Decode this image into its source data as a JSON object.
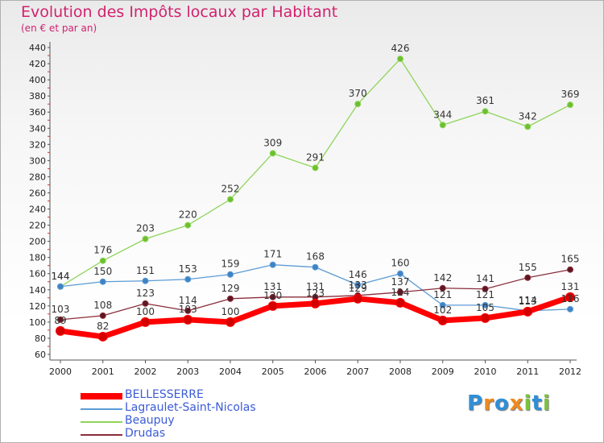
{
  "title": "Evolution des Impôts locaux par Habitant",
  "subtitle": "(en € et par an)",
  "logo": {
    "text": "Proxiti",
    "letters": [
      {
        "ch": "P",
        "color": "#2f8fd8"
      },
      {
        "ch": "r",
        "color": "#f08a1c"
      },
      {
        "ch": "o",
        "color": "#2f8fd8"
      },
      {
        "ch": "x",
        "color": "#f08a1c"
      },
      {
        "ch": "i",
        "color": "#7cc241"
      },
      {
        "ch": "t",
        "color": "#2f8fd8"
      },
      {
        "ch": "i",
        "color": "#7cc241"
      }
    ]
  },
  "chart_data": {
    "type": "line",
    "x": [
      "2000",
      "2001",
      "2002",
      "2003",
      "2004",
      "2005",
      "2006",
      "2007",
      "2008",
      "2009",
      "2010",
      "2011",
      "2012"
    ],
    "ylim": [
      60,
      440
    ],
    "yticks": [
      60,
      80,
      100,
      120,
      140,
      160,
      180,
      200,
      220,
      240,
      260,
      280,
      300,
      320,
      340,
      360,
      380,
      400,
      420,
      440
    ],
    "grid": false,
    "legend_position": "bottom-left",
    "series": [
      {
        "name": "Beaupuy",
        "color": "#8fd45a",
        "marker": "#6cbf2e",
        "width": 1.3,
        "values": [
          144,
          176,
          203,
          220,
          252,
          309,
          291,
          370,
          426,
          344,
          361,
          342,
          369
        ]
      },
      {
        "name": "Lagraulet-Saint-Nicolas",
        "color": "#5b9bd5",
        "marker": "#3f83c4",
        "width": 1.3,
        "values": [
          144,
          150,
          151,
          153,
          159,
          171,
          168,
          146,
          160,
          121,
          121,
          114,
          116
        ]
      },
      {
        "name": "Drudas",
        "color": "#8a2e3c",
        "marker": "#5e1620",
        "width": 1.3,
        "values": [
          103,
          108,
          123,
          114,
          129,
          131,
          131,
          133,
          137,
          142,
          141,
          155,
          165
        ]
      },
      {
        "name": "BELLESSERRE",
        "color": "#ff0000",
        "marker": "#d40000",
        "width": 7,
        "values": [
          89,
          82,
          100,
          103,
          100,
          120,
          123,
          129,
          124,
          102,
          105,
          113,
          131
        ]
      }
    ],
    "labels": [
      {
        "series": "Beaupuy",
        "values": [
          144,
          176,
          203,
          220,
          252,
          309,
          291,
          370,
          426,
          344,
          361,
          342,
          369
        ]
      },
      {
        "series": "Lagraulet-Saint-Nicolas",
        "values": [
          144,
          150,
          151,
          153,
          159,
          171,
          168,
          146,
          160,
          121,
          121,
          114,
          116
        ]
      },
      {
        "series": "Drudas",
        "values": [
          103,
          108,
          123,
          114,
          129,
          131,
          131,
          133,
          137,
          142,
          141,
          155,
          165
        ]
      },
      {
        "series": "BELLESSERRE",
        "values": [
          89,
          82,
          100,
          103,
          100,
          120,
          123,
          129,
          124,
          102,
          105,
          113,
          131
        ]
      }
    ],
    "legend_order": [
      "BELLESSERRE",
      "Lagraulet-Saint-Nicolas",
      "Beaupuy",
      "Drudas"
    ]
  }
}
